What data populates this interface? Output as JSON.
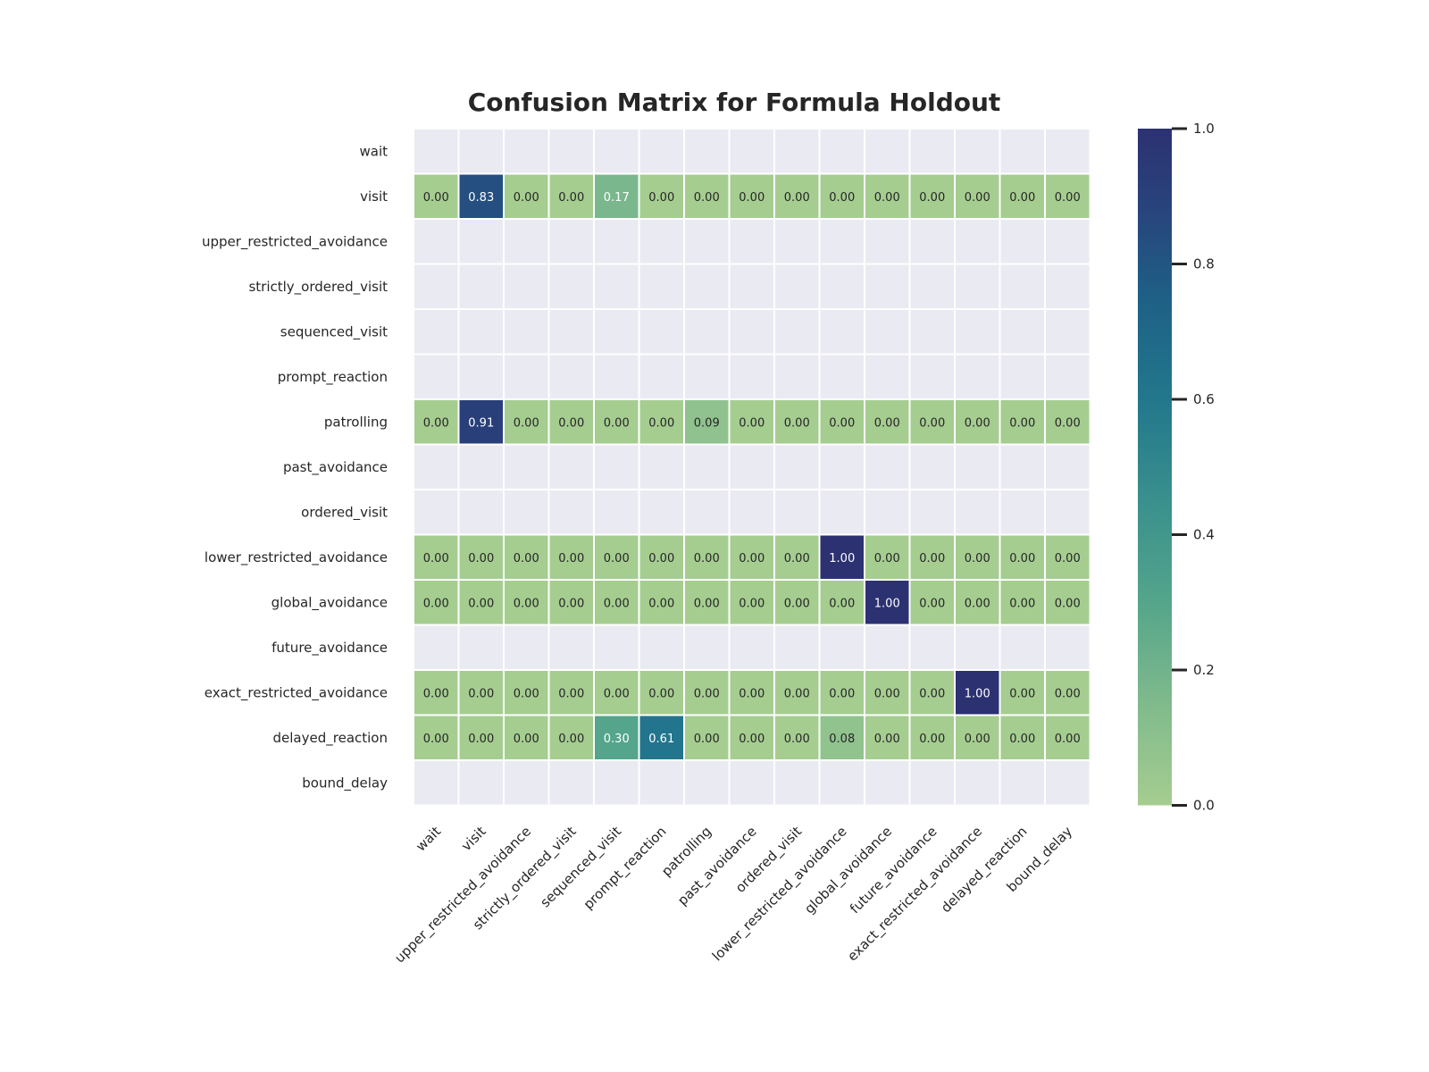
{
  "chart_data": {
    "type": "heatmap",
    "title": "Confusion Matrix for Formula Holdout",
    "xlabel": "",
    "ylabel": "",
    "row_labels": [
      "wait",
      "visit",
      "upper_restricted_avoidance",
      "strictly_ordered_visit",
      "sequenced_visit",
      "prompt_reaction",
      "patrolling",
      "past_avoidance",
      "ordered_visit",
      "lower_restricted_avoidance",
      "global_avoidance",
      "future_avoidance",
      "exact_restricted_avoidance",
      "delayed_reaction",
      "bound_delay"
    ],
    "col_labels": [
      "wait",
      "visit",
      "upper_restricted_avoidance",
      "strictly_ordered_visit",
      "sequenced_visit",
      "prompt_reaction",
      "patrolling",
      "past_avoidance",
      "ordered_visit",
      "lower_restricted_avoidance",
      "global_avoidance",
      "future_avoidance",
      "exact_restricted_avoidance",
      "delayed_reaction",
      "bound_delay"
    ],
    "values": [
      null,
      [
        0.0,
        0.83,
        0.0,
        0.0,
        0.17,
        0.0,
        0.0,
        0.0,
        0.0,
        0.0,
        0.0,
        0.0,
        0.0,
        0.0,
        0.0
      ],
      null,
      null,
      null,
      null,
      [
        0.0,
        0.91,
        0.0,
        0.0,
        0.0,
        0.0,
        0.09,
        0.0,
        0.0,
        0.0,
        0.0,
        0.0,
        0.0,
        0.0,
        0.0
      ],
      null,
      null,
      [
        0.0,
        0.0,
        0.0,
        0.0,
        0.0,
        0.0,
        0.0,
        0.0,
        0.0,
        1.0,
        0.0,
        0.0,
        0.0,
        0.0,
        0.0
      ],
      [
        0.0,
        0.0,
        0.0,
        0.0,
        0.0,
        0.0,
        0.0,
        0.0,
        0.0,
        0.0,
        1.0,
        0.0,
        0.0,
        0.0,
        0.0
      ],
      null,
      [
        0.0,
        0.0,
        0.0,
        0.0,
        0.0,
        0.0,
        0.0,
        0.0,
        0.0,
        0.0,
        0.0,
        0.0,
        1.0,
        0.0,
        0.0
      ],
      [
        0.0,
        0.0,
        0.0,
        0.0,
        0.3,
        0.61,
        0.0,
        0.0,
        0.0,
        0.08,
        0.0,
        0.0,
        0.0,
        0.0,
        0.0
      ],
      null
    ],
    "value_range": [
      0.0,
      1.0
    ],
    "colorbar_ticks": [
      "0.0",
      "0.2",
      "0.4",
      "0.6",
      "0.8",
      "1.0"
    ],
    "colormap": "crest",
    "colors": {
      "missing": "#eaeaf2",
      "grid_line": "#ffffff",
      "low": "#a5cd90",
      "high": "#2c3172"
    }
  }
}
